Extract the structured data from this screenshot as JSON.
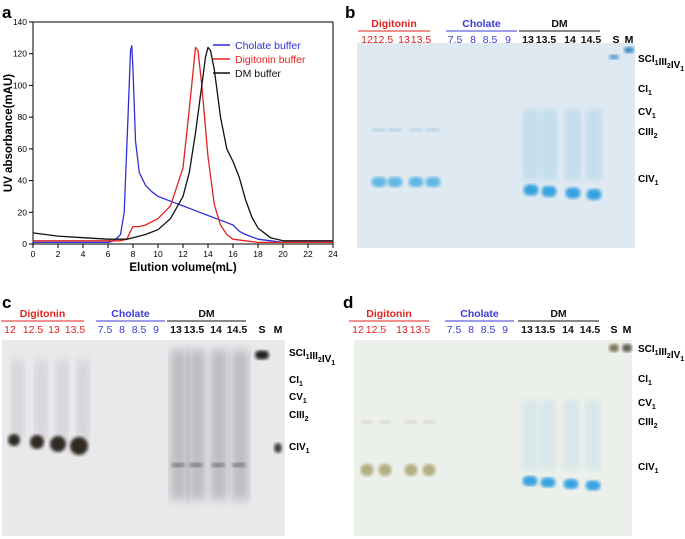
{
  "panels": {
    "a": {
      "letter": "a",
      "chart_data": {
        "type": "line",
        "xlabel": "Elution volume(mL)",
        "ylabel": "UV absorbance(mAU)",
        "xlim": [
          0,
          24
        ],
        "ylim": [
          0,
          140
        ],
        "xticks": [
          "0",
          "2",
          "4",
          "6",
          "8",
          "10",
          "12",
          "14",
          "16",
          "18",
          "20",
          "22",
          "24"
        ],
        "yticks": [
          "0",
          "20",
          "40",
          "60",
          "80",
          "100",
          "120",
          "140"
        ],
        "legend_position": "top-right",
        "series": [
          {
            "name": "Cholate buffer",
            "color": "#2f2fd6",
            "x": [
              0,
              2,
              4,
              6,
              6.5,
              7,
              7.3,
              7.6,
              7.8,
              7.9,
              8.0,
              8.2,
              8.5,
              9,
              9.5,
              10,
              11,
              12,
              13,
              14,
              15,
              16,
              16.5,
              17,
              18,
              19,
              20,
              22,
              24
            ],
            "y": [
              1,
              1,
              1,
              1,
              2,
              6,
              20,
              80,
              122,
              125,
              110,
              65,
              45,
              37,
              33,
              30,
              27,
              24,
              21,
              18,
              15,
              12,
              8,
              6,
              3,
              2,
              1,
              1,
              1
            ]
          },
          {
            "name": "Digitonin buffer",
            "color": "#e0231f",
            "x": [
              0,
              2,
              4,
              6,
              7,
              7.5,
              7.8,
              8,
              8.5,
              9,
              10,
              11,
              12,
              12.5,
              13,
              13.2,
              13.5,
              14,
              14.5,
              15,
              15.5,
              16,
              17,
              18,
              20,
              22,
              24
            ],
            "y": [
              2,
              2,
              2,
              2,
              2,
              3,
              8,
              11,
              11,
              12,
              16,
              24,
              48,
              85,
              124,
              122,
              100,
              55,
              25,
              12,
              6,
              3,
              2,
              1,
              1,
              1,
              1
            ]
          },
          {
            "name": "DM buffer",
            "color": "#111111",
            "x": [
              0,
              2,
              4,
              6,
              6.8,
              7,
              7.5,
              8,
              9,
              10,
              11,
              12,
              12.5,
              13,
              13.5,
              13.8,
              14,
              14.2,
              14.5,
              15,
              15.5,
              16,
              16.5,
              17,
              17.5,
              18,
              19,
              20,
              22,
              24
            ],
            "y": [
              7,
              5,
              4,
              3,
              3,
              3,
              3,
              4,
              6,
              9,
              16,
              30,
              45,
              70,
              100,
              118,
              124,
              122,
              110,
              80,
              60,
              52,
              42,
              28,
              17,
              10,
              4,
              2,
              2,
              2
            ]
          }
        ]
      }
    },
    "b": {
      "letter": "b",
      "gel_bg": "#dfe9f1",
      "groups": [
        {
          "name": "Digitonin",
          "color": "#e0231f",
          "lanes": [
            "12",
            "12.5",
            "13",
            "13.5"
          ]
        },
        {
          "name": "Cholate",
          "color": "#3b3bd6",
          "lanes": [
            "7.5",
            "8",
            "8.5",
            "9"
          ]
        },
        {
          "name": "DM",
          "color": "#111111",
          "lanes": [
            "13",
            "13.5",
            "14",
            "14.5"
          ]
        }
      ],
      "extra_lanes": [
        "S",
        "M"
      ]
    },
    "c": {
      "letter": "c",
      "gel_bg": "#e9e9ec",
      "groups": [
        {
          "name": "Digitonin",
          "color": "#e0231f",
          "lanes": [
            "12",
            "12.5",
            "13",
            "13.5"
          ]
        },
        {
          "name": "Cholate",
          "color": "#3b3bd6",
          "lanes": [
            "7.5",
            "8",
            "8.5",
            "9"
          ]
        },
        {
          "name": "DM",
          "color": "#111111",
          "lanes": [
            "13",
            "13.5",
            "14",
            "14.5"
          ]
        }
      ],
      "extra_lanes": [
        "S",
        "M"
      ]
    },
    "d": {
      "letter": "d",
      "gel_bg": "#ecf0ea",
      "groups": [
        {
          "name": "Digitonin",
          "color": "#e0231f",
          "lanes": [
            "12",
            "12.5",
            "13",
            "13.5"
          ]
        },
        {
          "name": "Cholate",
          "color": "#3b3bd6",
          "lanes": [
            "7.5",
            "8",
            "8.5",
            "9"
          ]
        },
        {
          "name": "DM",
          "color": "#111111",
          "lanes": [
            "13",
            "13.5",
            "14",
            "14.5"
          ]
        }
      ],
      "extra_lanes": [
        "S",
        "M"
      ]
    }
  },
  "complex_labels": [
    {
      "base": "SCI",
      "parts": [
        [
          "SCI",
          "1"
        ],
        [
          "III",
          "2"
        ],
        [
          "IV",
          "1"
        ]
      ]
    },
    {
      "base": "CI",
      "parts": [
        [
          "CI",
          "1"
        ]
      ]
    },
    {
      "base": "CV",
      "parts": [
        [
          "CV",
          "1"
        ]
      ]
    },
    {
      "base": "CIII",
      "parts": [
        [
          "CIII",
          "2"
        ]
      ]
    },
    {
      "base": "CIV",
      "parts": [
        [
          "CIV",
          "1"
        ]
      ]
    }
  ]
}
